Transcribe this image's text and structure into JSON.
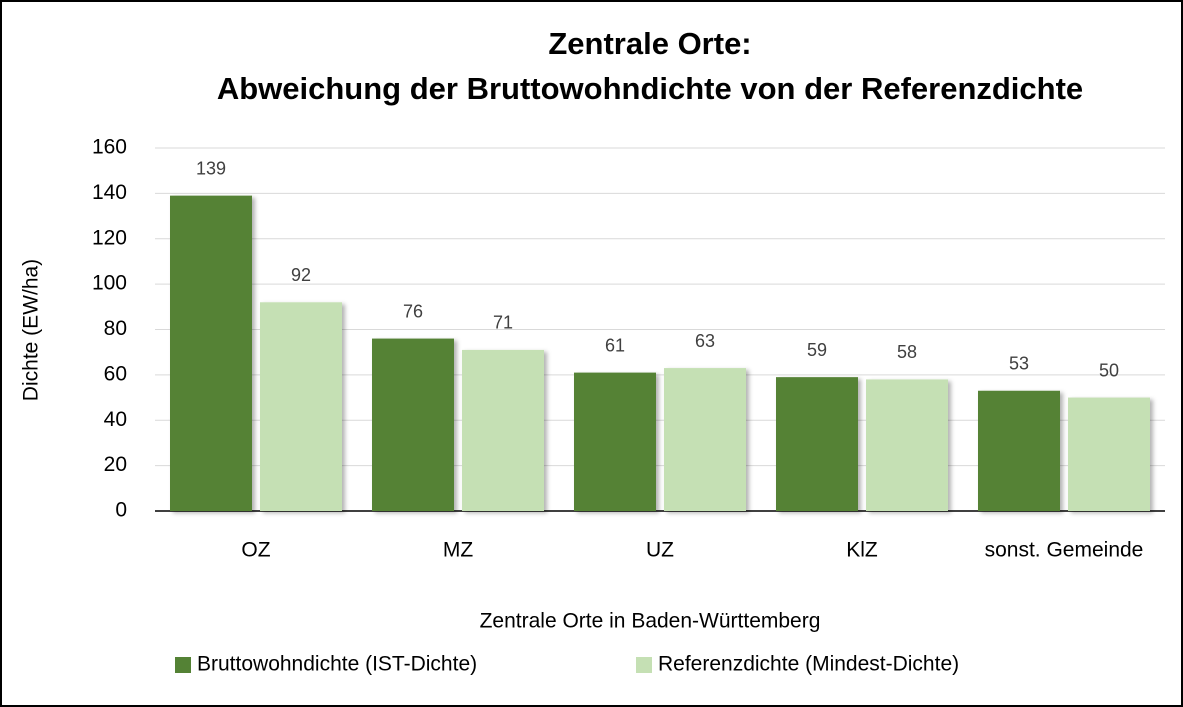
{
  "chart_data": {
    "type": "bar",
    "title": [
      "Zentrale Orte:",
      "Abweichung der Bruttowohndichte von der Referenzdichte"
    ],
    "categories": [
      "OZ",
      "MZ",
      "UZ",
      "KlZ",
      "sonst. Gemeinde"
    ],
    "series": [
      {
        "name": "Bruttowohndichte (IST-Dichte)",
        "color": "#548235",
        "values": [
          139,
          76,
          61,
          59,
          53
        ]
      },
      {
        "name": "Referenzdichte (Mindest-Dichte)",
        "color": "#c5e0b4",
        "values": [
          92,
          71,
          63,
          58,
          50
        ]
      }
    ],
    "x_label": "Zentrale Orte in Baden-Württemberg",
    "y_label": "Dichte (EW/ha)",
    "ylim": [
      0,
      160
    ],
    "yticks": [
      0,
      20,
      40,
      60,
      80,
      100,
      120,
      140,
      160
    ],
    "grid": true,
    "legend": "bottom"
  }
}
